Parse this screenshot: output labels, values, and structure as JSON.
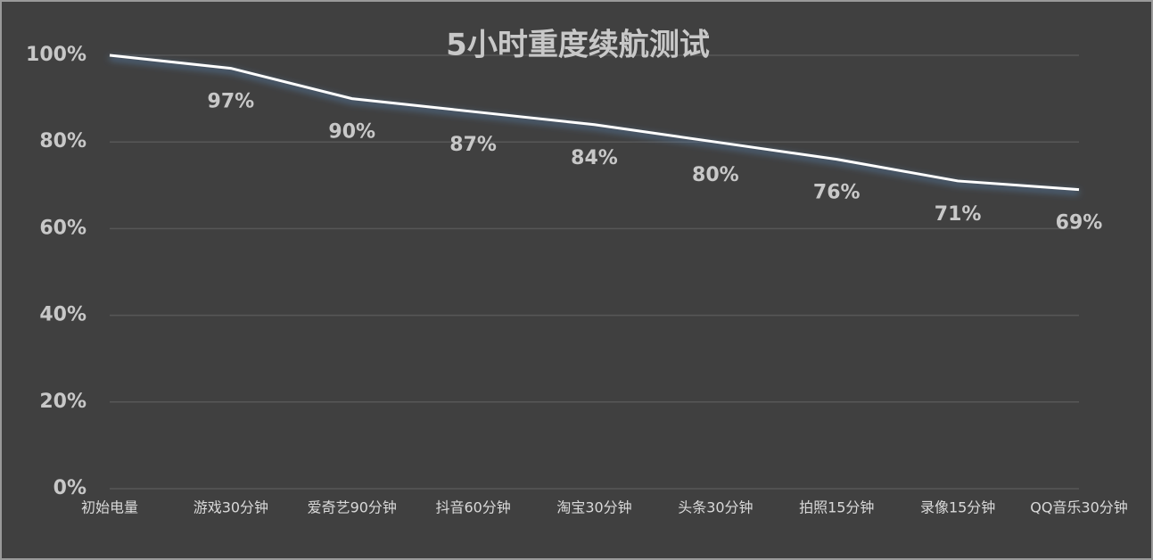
{
  "chart_data": {
    "type": "line",
    "title": "5小时重度续航测试",
    "categories": [
      "初始电量",
      "游戏30分钟",
      "爱奇艺90分钟",
      "抖音60分钟",
      "淘宝30分钟",
      "头条30分钟",
      "拍照15分钟",
      "录像15分钟",
      "QQ音乐30分钟"
    ],
    "series": [
      {
        "color": "#ffffff",
        "values": [
          100,
          97,
          90,
          87,
          84,
          80,
          76,
          71,
          69
        ],
        "value_labels": [
          null,
          "97%",
          "90%",
          "87%",
          "84%",
          "80%",
          "76%",
          "71%",
          "69%"
        ]
      }
    ],
    "ylim": [
      0,
      100
    ],
    "yticks": [
      {
        "value": 0,
        "label": "0%"
      },
      {
        "value": 20,
        "label": "20%"
      },
      {
        "value": 40,
        "label": "40%"
      },
      {
        "value": 60,
        "label": "60%"
      },
      {
        "value": 80,
        "label": "80%"
      },
      {
        "value": 100,
        "label": "100%"
      }
    ],
    "grid": true
  }
}
